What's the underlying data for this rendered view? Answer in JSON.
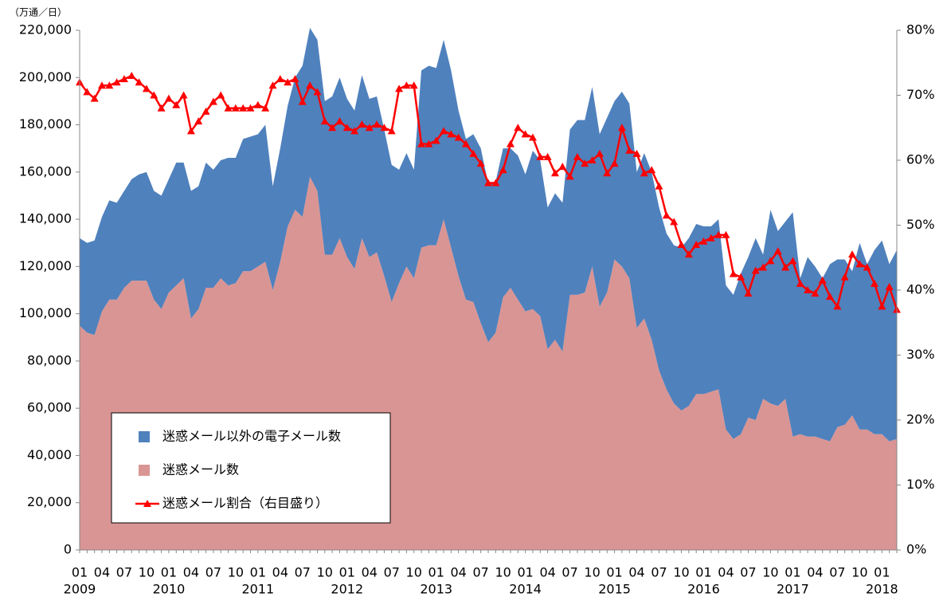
{
  "chart_data": {
    "type": "stacked_area_line",
    "unit_label": "（万通／日）",
    "categories": [
      "01",
      null,
      null,
      "04",
      null,
      null,
      "07",
      null,
      null,
      "10",
      null,
      null,
      "01",
      null,
      null,
      "04",
      null,
      null,
      "07",
      null,
      null,
      "10",
      null,
      null,
      "01",
      null,
      null,
      "04",
      null,
      null,
      "07",
      null,
      null,
      "10",
      null,
      null,
      "01",
      null,
      null,
      "04",
      null,
      null,
      "07",
      null,
      null,
      "10",
      null,
      null,
      "01",
      null,
      null,
      "04",
      null,
      null,
      "07",
      null,
      null,
      "10",
      null,
      null,
      "01",
      null,
      null,
      "04",
      null,
      null,
      "07",
      null,
      null,
      "10",
      null,
      null,
      "01",
      null,
      null,
      "04",
      null,
      null,
      "07",
      null,
      null,
      "10",
      null,
      null,
      "01",
      null,
      null,
      "04",
      null,
      null,
      "07",
      null,
      null,
      "10",
      null,
      null,
      "01",
      null,
      null,
      "04",
      null,
      null,
      "07",
      null,
      null,
      "10",
      null,
      null,
      "01",
      null,
      null
    ],
    "years": [
      "2009",
      "2010",
      "2011",
      "2012",
      "2013",
      "2014",
      "2015",
      "2016",
      "2017",
      "2018"
    ],
    "series": [
      {
        "name": "迷惑メール数",
        "color": "#d99594",
        "values": [
          95000,
          92000,
          91000,
          101000,
          106000,
          106000,
          111000,
          114000,
          114000,
          114000,
          106000,
          102000,
          109000,
          112000,
          115000,
          98000,
          102000,
          111000,
          111000,
          115000,
          112000,
          113000,
          118000,
          118000,
          120000,
          122000,
          110000,
          122000,
          137000,
          144000,
          141000,
          158000,
          152000,
          125000,
          125000,
          132000,
          124000,
          119000,
          132000,
          124000,
          126000,
          116000,
          105000,
          113000,
          120000,
          115000,
          128000,
          129000,
          129000,
          140000,
          128000,
          116000,
          106000,
          105000,
          96000,
          88000,
          92000,
          107000,
          111000,
          106000,
          101000,
          102000,
          99000,
          85000,
          89000,
          84000,
          108000,
          108000,
          109000,
          120000,
          103000,
          109000,
          123000,
          120000,
          115000,
          94000,
          98000,
          89000,
          76000,
          68000,
          62000,
          59000,
          61000,
          66000,
          66000,
          67000,
          68000,
          51000,
          47000,
          49000,
          56000,
          55000,
          64000,
          62000,
          61000,
          64000,
          48000,
          49000,
          48000,
          48000,
          47000,
          46000,
          52000,
          53000,
          57000,
          51000,
          51000,
          49000,
          49000,
          46000,
          47000
        ]
      },
      {
        "name": "迷惑メール以外の電子メール数",
        "color": "#4f81bd",
        "values": [
          37000,
          38000,
          40000,
          40000,
          42000,
          41000,
          41000,
          43000,
          45000,
          46000,
          46000,
          48000,
          48000,
          52000,
          49000,
          54000,
          52000,
          53000,
          50000,
          50000,
          54000,
          53000,
          56000,
          57000,
          56000,
          58000,
          44000,
          48000,
          51000,
          56000,
          64000,
          63000,
          64000,
          65000,
          67000,
          68000,
          67000,
          67000,
          69000,
          67000,
          66000,
          62000,
          58000,
          48000,
          48000,
          46000,
          75000,
          76000,
          75000,
          76000,
          75000,
          70000,
          68000,
          71000,
          74000,
          67000,
          64000,
          63000,
          59000,
          61000,
          58000,
          67000,
          66000,
          60000,
          62000,
          63000,
          70000,
          74000,
          73000,
          76000,
          73000,
          74000,
          67000,
          74000,
          74000,
          66000,
          70000,
          71000,
          69000,
          66000,
          67000,
          69000,
          71000,
          72000,
          71000,
          70000,
          72000,
          61000,
          61000,
          68000,
          68000,
          77000,
          61000,
          82000,
          74000,
          75000,
          95000,
          66000,
          76000,
          72000,
          68000,
          75000,
          71000,
          70000,
          61000,
          79000,
          70000,
          78000,
          82000,
          75000,
          80000
        ]
      },
      {
        "name": "迷惑メール割合（右目盛り）",
        "color": "#ff0000",
        "axis": "y2",
        "values": [
          72,
          70.5,
          69.5,
          71.5,
          71.5,
          72,
          72.5,
          73,
          72,
          71,
          70,
          68,
          69.5,
          68.5,
          70,
          64.5,
          66,
          67.5,
          69,
          70,
          68,
          68,
          68,
          68,
          68.5,
          68,
          71.5,
          72.5,
          72,
          72.5,
          69,
          71.5,
          70.5,
          66,
          65,
          66,
          65,
          64.5,
          65.5,
          65,
          65.5,
          65,
          64.5,
          71,
          71.5,
          71.5,
          62.5,
          62.5,
          63,
          64.5,
          64,
          63.5,
          62.5,
          61,
          59.5,
          56.5,
          56.5,
          58.5,
          62.5,
          65,
          64,
          63.5,
          60.5,
          60.5,
          58,
          59,
          57.5,
          60.5,
          59.5,
          60,
          61,
          58,
          59.5,
          65,
          61.5,
          61,
          58,
          58.5,
          56,
          51.5,
          50.5,
          47,
          45.5,
          47,
          47.5,
          48,
          48.5,
          48.5,
          42.5,
          42,
          39.5,
          43,
          43.5,
          44.5,
          46,
          43.5,
          44.5,
          41,
          40,
          39.5,
          41.5,
          39,
          37.5,
          42,
          45.5,
          44,
          43.5,
          41,
          37.5,
          40.5,
          37
        ]
      }
    ],
    "ylim": [
      0,
      220000
    ],
    "yticks": [
      0,
      {
        "value": 20000,
        "label": "20,000"
      },
      {
        "value": 40000,
        "label": "40,000"
      },
      {
        "value": 60000,
        "label": "60,000"
      },
      {
        "value": 80000,
        "label": "80,000"
      },
      {
        "value": 100000,
        "label": "100,000"
      },
      {
        "value": 120000,
        "label": "120,000"
      },
      {
        "value": 140000,
        "label": "140,000"
      },
      {
        "value": 160000,
        "label": "160,000"
      },
      {
        "value": 180000,
        "label": "180,000"
      },
      {
        "value": 200000,
        "label": "200,000"
      },
      {
        "value": 220000,
        "label": "220,000"
      }
    ],
    "y2lim": [
      0,
      80
    ],
    "y2ticks": [
      {
        "value": 0,
        "label": "0%"
      },
      {
        "value": 10,
        "label": "10%"
      },
      {
        "value": 20,
        "label": "20%"
      },
      {
        "value": 30,
        "label": "30%"
      },
      {
        "value": 40,
        "label": "40%"
      },
      {
        "value": 50,
        "label": "50%"
      },
      {
        "value": 60,
        "label": "60%"
      },
      {
        "value": 70,
        "label": "70%"
      },
      {
        "value": 80,
        "label": "80%"
      }
    ],
    "grid": false,
    "legend": "lower left"
  }
}
